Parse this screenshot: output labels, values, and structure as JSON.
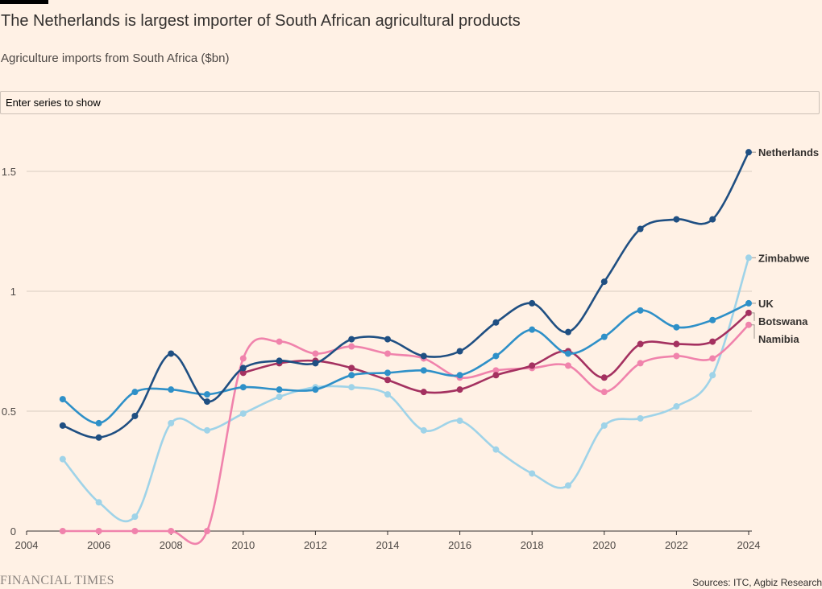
{
  "title": "The Netherlands is largest importer of South African agricultural products",
  "subtitle": "Agriculture imports from South Africa ($bn)",
  "series_filter": {
    "placeholder": "Enter series to show"
  },
  "footer": {
    "brand": "FINANCIAL TIMES",
    "source": "Sources: ITC, Agbiz Research"
  },
  "colors": {
    "background": "#fff1e5",
    "grid": "#d9cdc1",
    "axis": "#33302e"
  },
  "chart_data": {
    "type": "line",
    "xlim": [
      2004,
      2024
    ],
    "ylim": [
      0,
      1.5
    ],
    "x_ticks": [
      2004,
      2006,
      2008,
      2010,
      2012,
      2014,
      2016,
      2018,
      2020,
      2022,
      2024
    ],
    "y_ticks": [
      0,
      0.5,
      1,
      1.5
    ],
    "y_tick_labels": [
      "0",
      "0.5",
      "1",
      "1.5"
    ],
    "grid": "horizontal",
    "x": [
      2005,
      2006,
      2007,
      2008,
      2009,
      2010,
      2011,
      2012,
      2013,
      2014,
      2015,
      2016,
      2017,
      2018,
      2019,
      2020,
      2021,
      2022,
      2023,
      2024
    ],
    "series": [
      {
        "name": "Zimbabwe",
        "color": "#9fd3e8",
        "values": [
          0.3,
          0.12,
          0.06,
          0.45,
          0.42,
          0.49,
          0.56,
          0.6,
          0.6,
          0.57,
          0.42,
          0.46,
          0.34,
          0.24,
          0.19,
          0.44,
          0.47,
          0.52,
          0.65,
          1.14
        ]
      },
      {
        "name": "Namibia",
        "color": "#f083ac",
        "values": [
          0.0,
          0.0,
          0.0,
          0.0,
          0.0,
          0.72,
          0.79,
          0.74,
          0.77,
          0.74,
          0.72,
          0.64,
          0.67,
          0.68,
          0.69,
          0.58,
          0.7,
          0.73,
          0.72,
          0.86
        ]
      },
      {
        "name": "Botswana",
        "color": "#a43160",
        "values": [
          null,
          null,
          null,
          null,
          null,
          0.66,
          0.7,
          0.71,
          0.68,
          0.63,
          0.58,
          0.59,
          0.65,
          0.69,
          0.75,
          0.64,
          0.78,
          0.78,
          0.79,
          0.91
        ]
      },
      {
        "name": "UK",
        "color": "#2e90c8",
        "values": [
          0.55,
          0.45,
          0.58,
          0.59,
          0.57,
          0.6,
          0.59,
          0.59,
          0.65,
          0.66,
          0.67,
          0.65,
          0.73,
          0.84,
          0.74,
          0.81,
          0.92,
          0.85,
          0.88,
          0.95
        ]
      },
      {
        "name": "Netherlands",
        "color": "#1f4f82",
        "values": [
          0.44,
          0.39,
          0.48,
          0.74,
          0.54,
          0.68,
          0.71,
          0.7,
          0.8,
          0.8,
          0.73,
          0.75,
          0.87,
          0.95,
          0.83,
          1.04,
          1.26,
          1.3,
          1.3,
          1.58
        ]
      }
    ]
  }
}
